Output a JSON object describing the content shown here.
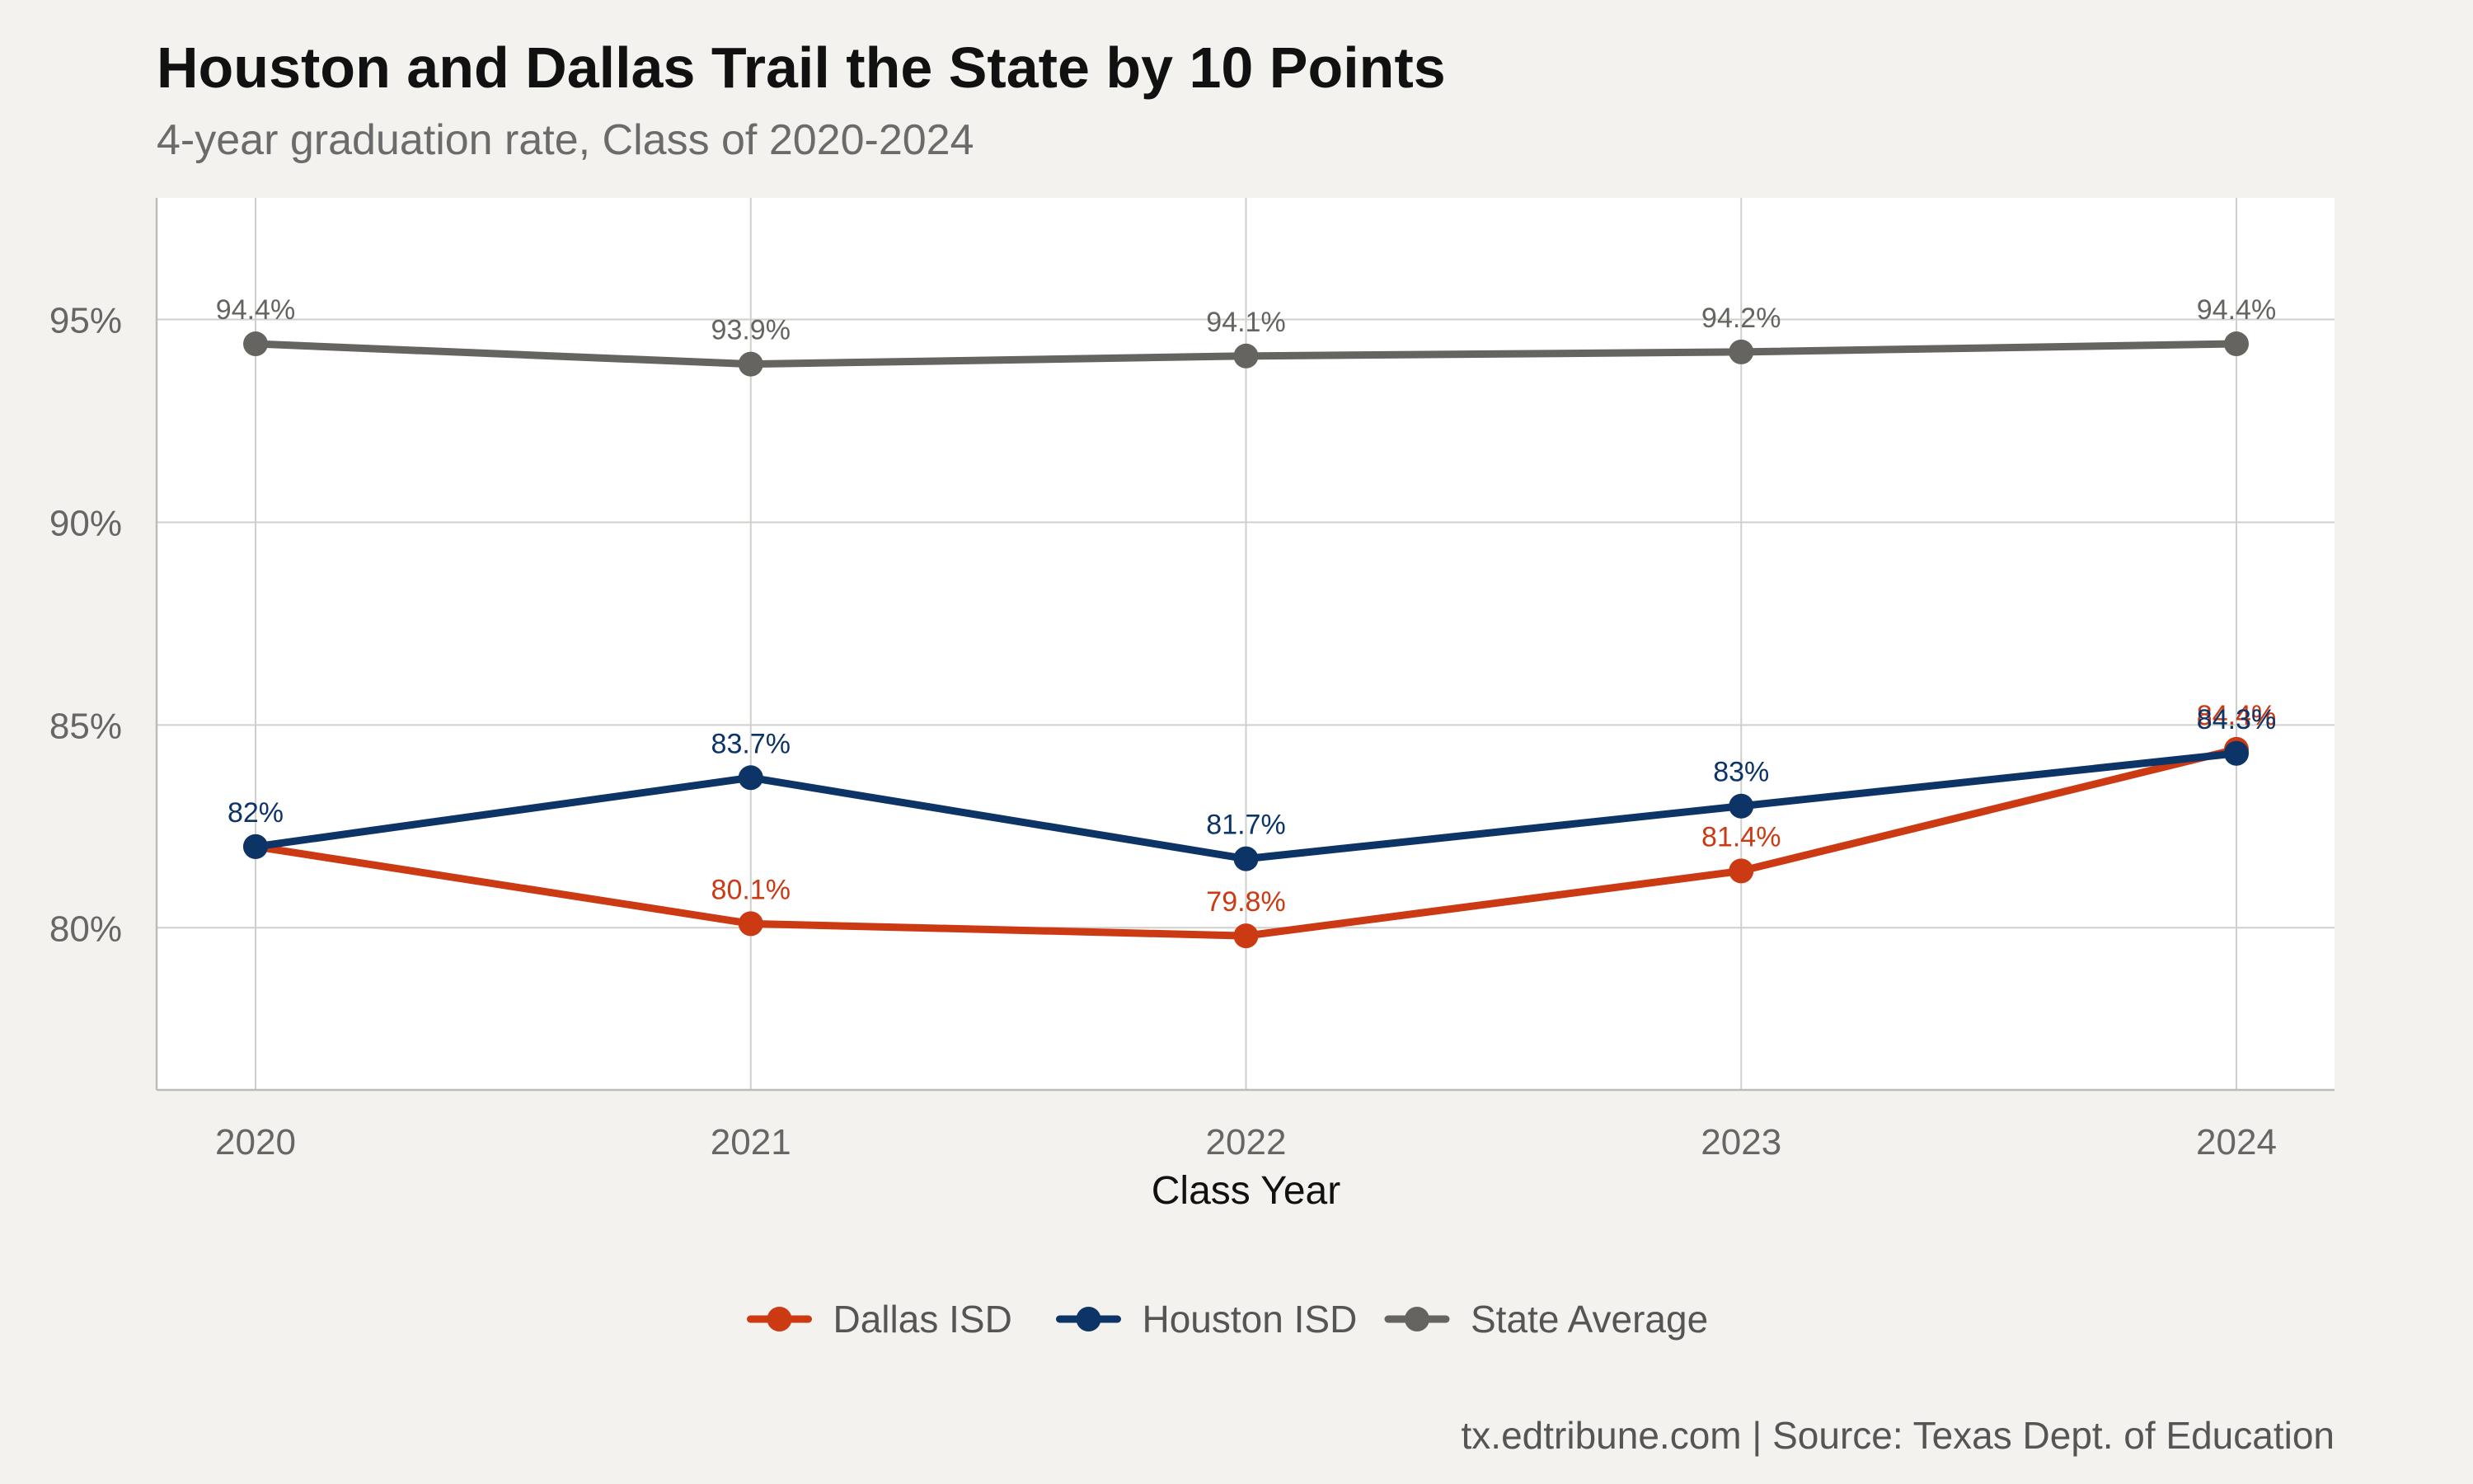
{
  "title": "Houston and Dallas Trail the State by 10 Points",
  "subtitle": "4-year graduation rate, Class of 2020-2024",
  "caption": "tx.edtribune.com | Source: Texas Dept. of Education",
  "chart_data": {
    "type": "line",
    "x": [
      2020,
      2021,
      2022,
      2023,
      2024
    ],
    "xlabel": "Class Year",
    "ylabel": "",
    "ylim": [
      76,
      98
    ],
    "yticks": [
      80,
      85,
      90,
      95
    ],
    "ytick_labels": [
      "80%",
      "85%",
      "90%",
      "95%"
    ],
    "xtick_labels": [
      "2020",
      "2021",
      "2022",
      "2023",
      "2024"
    ],
    "grid": true,
    "legend_position": "bottom",
    "series": [
      {
        "name": "Dallas ISD",
        "color": "#cc3a14",
        "values": [
          82.0,
          80.1,
          79.8,
          81.4,
          84.4
        ],
        "labels": [
          "",
          "80.1%",
          "79.8%",
          "81.4%",
          "84.4%"
        ]
      },
      {
        "name": "Houston ISD",
        "color": "#0d3466",
        "values": [
          82.0,
          83.7,
          81.7,
          83.0,
          84.3
        ],
        "labels": [
          "82%",
          "83.7%",
          "81.7%",
          "83%",
          "84.3%"
        ]
      },
      {
        "name": "State Average",
        "color": "#666460",
        "values": [
          94.4,
          93.9,
          94.1,
          94.2,
          94.4
        ],
        "labels": [
          "94.4%",
          "93.9%",
          "94.1%",
          "94.2%",
          "94.4%"
        ]
      }
    ]
  }
}
